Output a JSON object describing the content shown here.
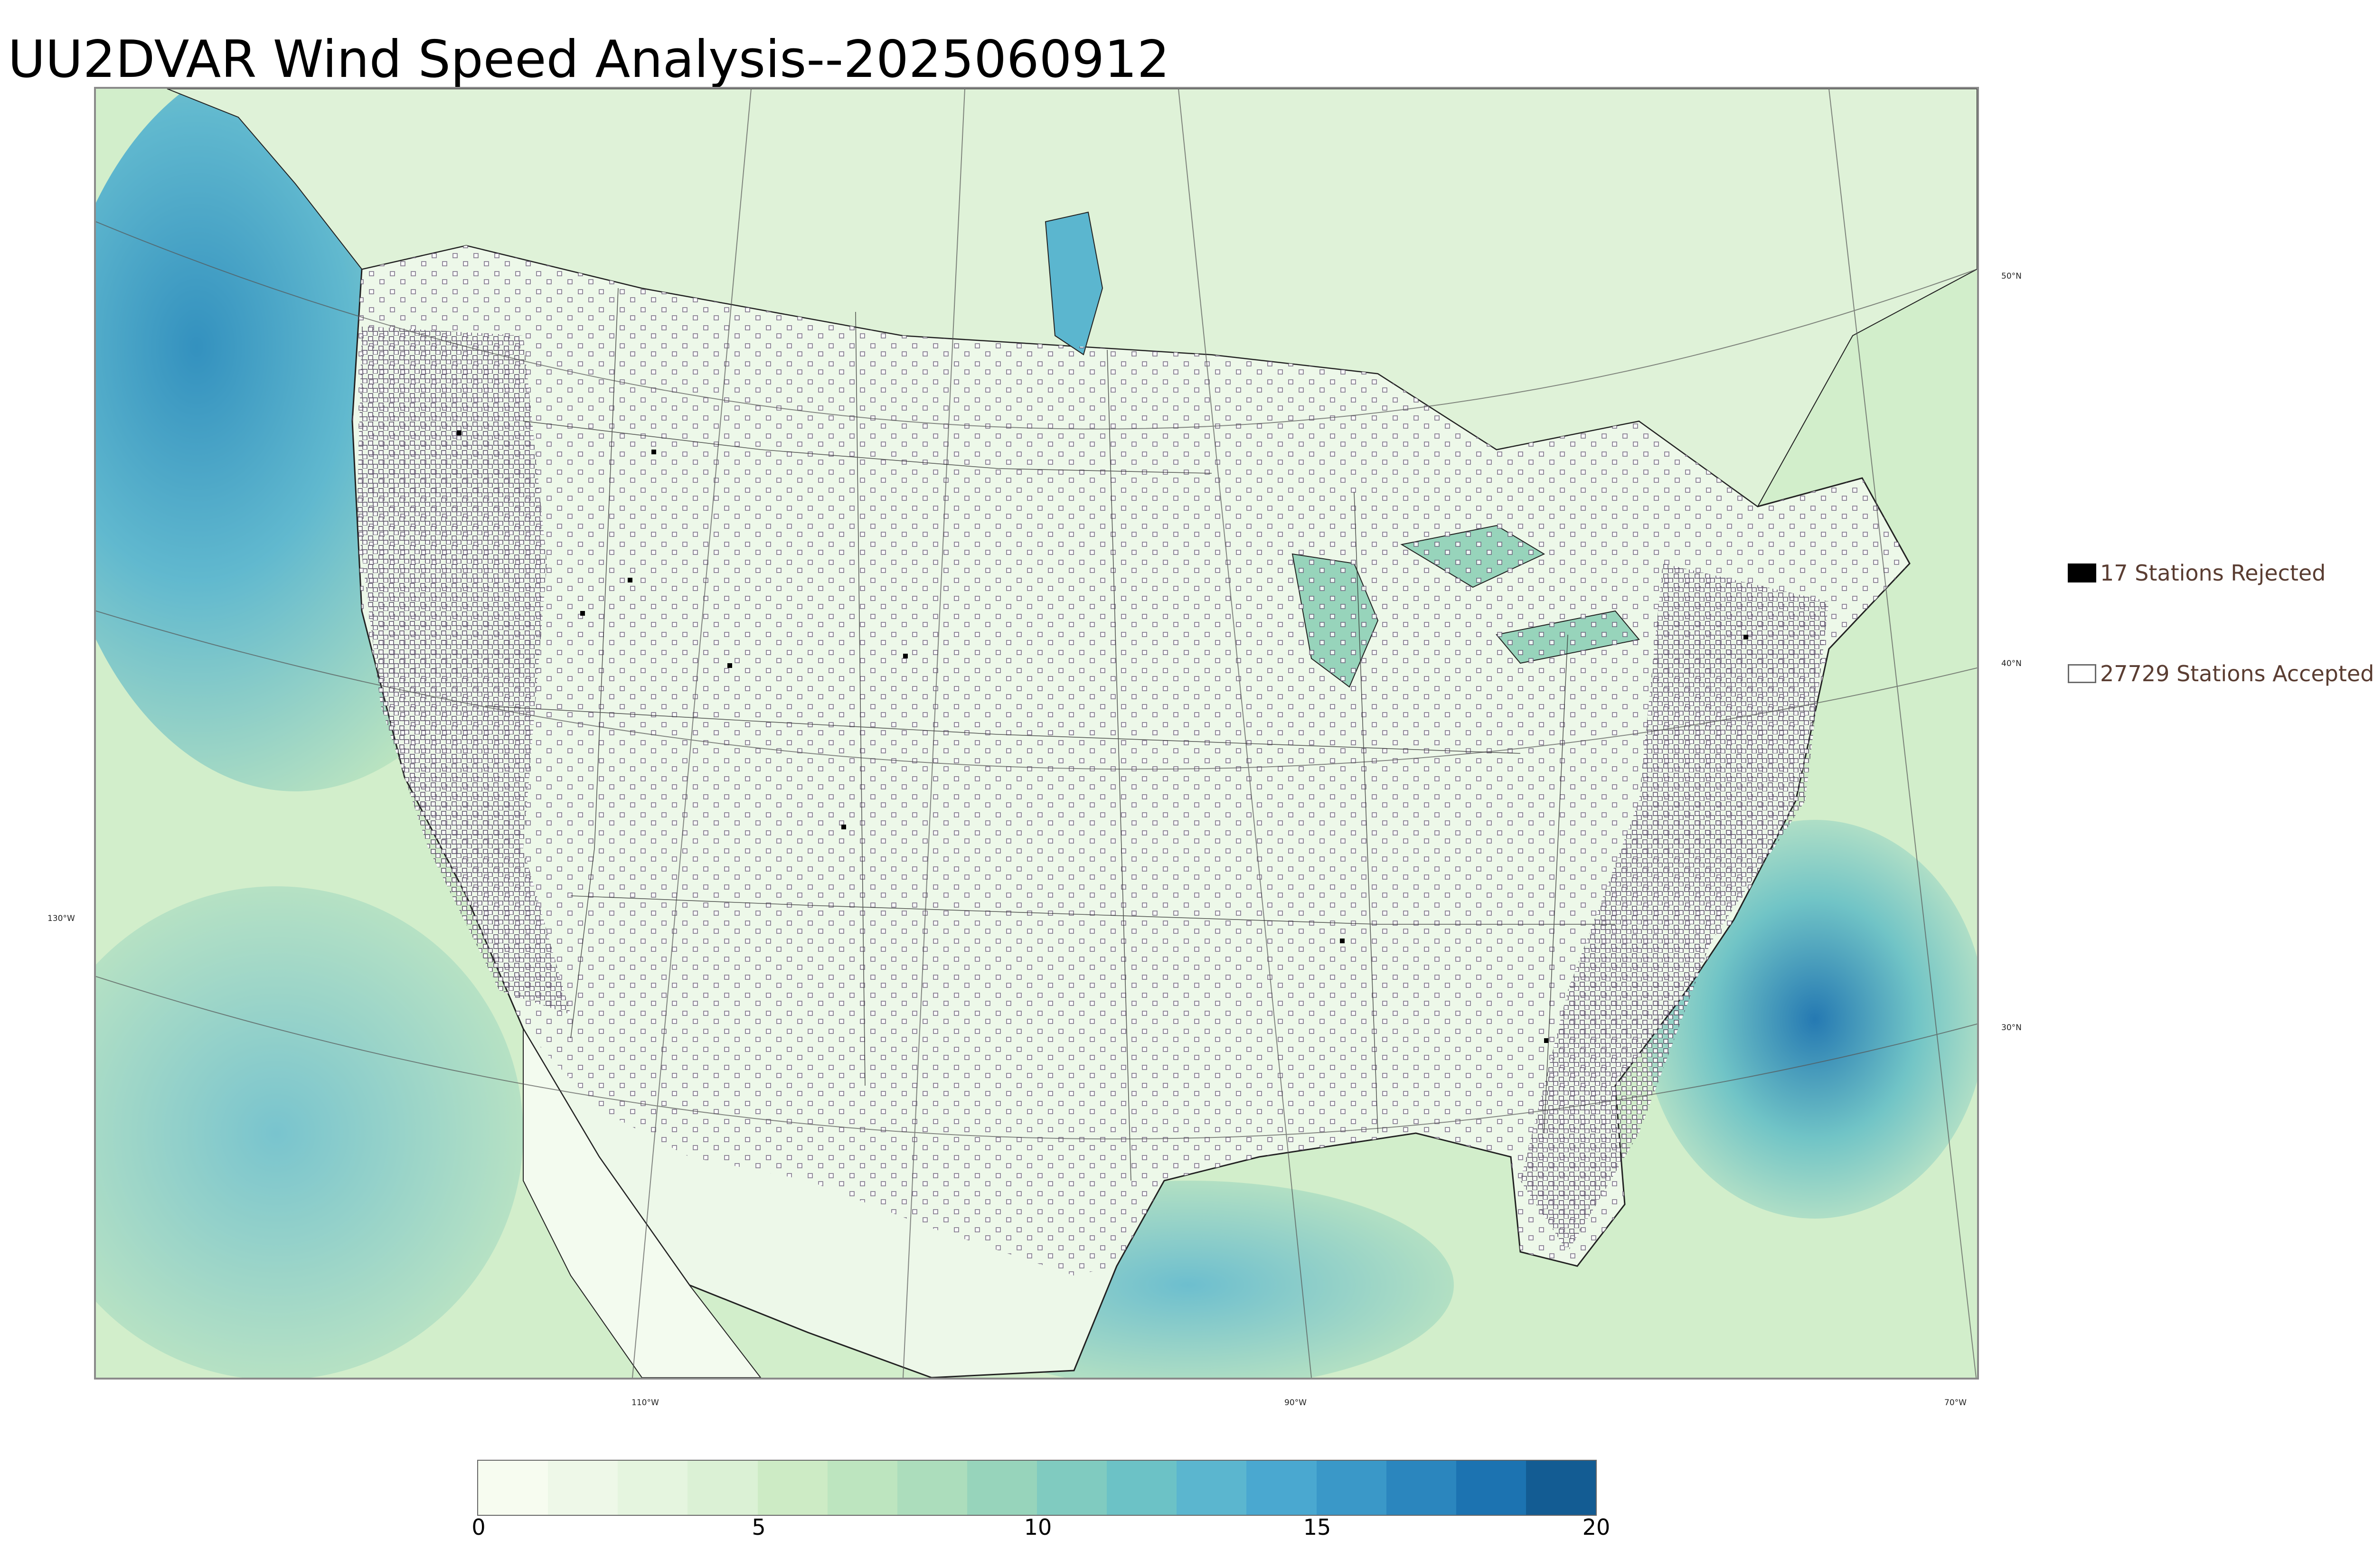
{
  "title": "UU2DVAR Wind Speed Analysis--2025060912",
  "map": {
    "lon_labels": [
      "130°W",
      "110°W",
      "90°W",
      "70°W"
    ],
    "lat_labels": [
      "50°N",
      "40°N",
      "30°N"
    ],
    "land_color": "#e9f6e4",
    "ocean_color": "#7fc8c9",
    "strong_wind_color": "#2b8cbe"
  },
  "legend": {
    "rejected_label": "17 Stations Rejected",
    "accepted_label": "27729 Stations Accepted",
    "rejected_color": "#000000",
    "accepted_color": "#ffffff"
  },
  "colorbar": {
    "tick_labels": [
      "0",
      "5",
      "10",
      "15",
      "20"
    ],
    "range": [
      0,
      20
    ],
    "colors": [
      "#f7fcf0",
      "#eef8e8",
      "#e5f5df",
      "#dbf1d5",
      "#cdebc5",
      "#bde5bf",
      "#acddbc",
      "#97d4bb",
      "#80cbc0",
      "#6cc2c6",
      "#5bb6cf",
      "#4aa8d0",
      "#3a98c8",
      "#2b86be",
      "#1c73b1",
      "#135c93"
    ]
  }
}
